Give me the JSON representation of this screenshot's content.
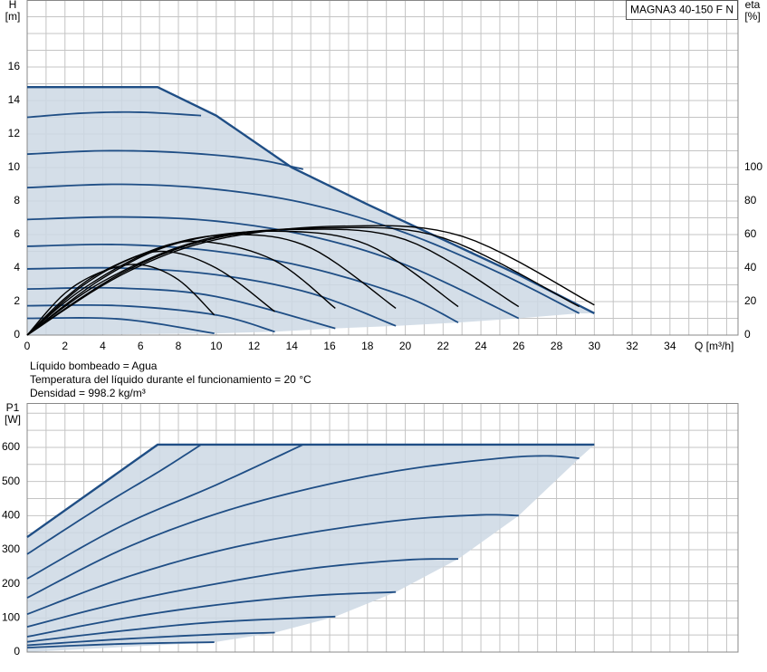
{
  "chart_data": [
    {
      "type": "line",
      "title": "MAGNA3 40-150 F N",
      "y_label": "H",
      "y_unit": "[m]",
      "y2_label": "eta",
      "y2_unit": "[%]",
      "x_label": "Q [m³/h]",
      "notes": [
        "Líquido bombeado = Agua",
        "Temperatura del líquido durante el funcionamiento = 20 °C",
        "Densidad = 998.2 kg/m³"
      ],
      "xlim": [
        0,
        37.6
      ],
      "xticks": [
        0,
        2,
        4,
        6,
        8,
        10,
        12,
        14,
        16,
        18,
        20,
        22,
        24,
        26,
        28,
        30,
        32,
        34
      ],
      "ylim": [
        0,
        20
      ],
      "yticks": [
        0,
        2,
        4,
        6,
        8,
        10,
        12,
        14,
        16
      ],
      "y2lim": [
        0,
        200
      ],
      "y2ticks": [
        0,
        20,
        40,
        60,
        80,
        100
      ],
      "grid": true,
      "fill_color": "#cdd8e4",
      "series": [
        {
          "color": "#1f4e85",
          "smooth": false,
          "x": [
            0,
            6.9,
            10,
            14,
            18,
            22,
            26,
            30
          ],
          "values": [
            14.8,
            14.8,
            13.1,
            10.0,
            7.8,
            5.7,
            3.6,
            1.3
          ]
        },
        {
          "color": "#1f4e85",
          "x": [
            0,
            3,
            6,
            9.2
          ],
          "values": [
            13.0,
            13.25,
            13.3,
            13.1
          ]
        },
        {
          "color": "#1f4e85",
          "x": [
            0,
            4,
            8,
            12,
            14.6
          ],
          "values": [
            10.8,
            11.0,
            10.9,
            10.5,
            9.9
          ]
        },
        {
          "color": "#1f4e85",
          "x": [
            0,
            5,
            10,
            15,
            20,
            25,
            29.2
          ],
          "values": [
            8.8,
            9.0,
            8.7,
            7.8,
            6.1,
            3.7,
            1.3
          ]
        },
        {
          "color": "#1f4e85",
          "x": [
            0,
            5,
            10,
            15,
            20,
            26
          ],
          "values": [
            6.9,
            7.05,
            6.8,
            5.9,
            4.2,
            1.0
          ]
        },
        {
          "color": "#1f4e85",
          "x": [
            0,
            5,
            10,
            15,
            20,
            22.8
          ],
          "values": [
            5.3,
            5.4,
            5.0,
            4.0,
            2.3,
            0.75
          ]
        },
        {
          "color": "#1f4e85",
          "x": [
            0,
            5,
            10,
            15,
            19.5
          ],
          "values": [
            3.95,
            4.0,
            3.6,
            2.5,
            0.55
          ]
        },
        {
          "color": "#1f4e85",
          "x": [
            0,
            5,
            10,
            16.3
          ],
          "values": [
            2.75,
            2.8,
            2.3,
            0.4
          ]
        },
        {
          "color": "#1f4e85",
          "x": [
            0,
            5,
            10,
            13.1
          ],
          "values": [
            1.75,
            1.75,
            1.2,
            0.2
          ]
        },
        {
          "color": "#1f4e85",
          "x": [
            0,
            5,
            9.9
          ],
          "values": [
            1.0,
            0.95,
            0.1
          ]
        },
        {
          "color": "#000000",
          "axis": "y2",
          "x": [
            0,
            2,
            4,
            6,
            8,
            9.9
          ],
          "values": [
            0,
            25,
            38,
            42,
            33,
            12
          ]
        },
        {
          "color": "#000000",
          "axis": "y2",
          "x": [
            0,
            2,
            4,
            7,
            10,
            13.1
          ],
          "values": [
            0,
            22,
            38,
            50,
            40,
            14
          ]
        },
        {
          "color": "#000000",
          "axis": "y2",
          "x": [
            0,
            3,
            6,
            9,
            13,
            16.3
          ],
          "values": [
            0,
            30,
            48,
            56,
            45,
            16
          ]
        },
        {
          "color": "#000000",
          "axis": "y2",
          "x": [
            0,
            3,
            7,
            11,
            15,
            19.5
          ],
          "values": [
            0,
            28,
            52,
            60,
            52,
            16
          ]
        },
        {
          "color": "#000000",
          "axis": "y2",
          "x": [
            0,
            4,
            8,
            13,
            18,
            22.8
          ],
          "values": [
            0,
            34,
            55,
            62,
            54,
            17
          ]
        },
        {
          "color": "#000000",
          "axis": "y2",
          "x": [
            0,
            4,
            9,
            14,
            20,
            26
          ],
          "values": [
            0,
            32,
            56,
            63,
            57,
            17
          ]
        },
        {
          "color": "#000000",
          "axis": "y2",
          "x": [
            0,
            5,
            10,
            16,
            22,
            29.2
          ],
          "values": [
            0,
            37,
            58,
            64,
            58,
            17
          ]
        },
        {
          "color": "#000000",
          "axis": "y2",
          "x": [
            0,
            5,
            10,
            16.5,
            23,
            30
          ],
          "values": [
            0,
            36,
            57,
            65,
            59,
            18
          ]
        }
      ]
    },
    {
      "type": "line",
      "y_label": "P1",
      "y_unit": "[W]",
      "xlim": [
        0,
        37.6
      ],
      "xticks": [
        0,
        2,
        4,
        6,
        8,
        10,
        12,
        14,
        16,
        18,
        20,
        22,
        24,
        26,
        28,
        30,
        32,
        34
      ],
      "show_xtick_labels": false,
      "ylim": [
        0,
        730
      ],
      "yticks": [
        0,
        100,
        200,
        300,
        400,
        500,
        600
      ],
      "grid": true,
      "fill_color": "#cdd8e4",
      "series": [
        {
          "color": "#1f4e85",
          "smooth": false,
          "x": [
            0,
            6.9,
            30
          ],
          "values": [
            337,
            608,
            608
          ]
        },
        {
          "color": "#1f4e85",
          "x": [
            0,
            4,
            7,
            9.2
          ],
          "values": [
            287,
            430,
            530,
            608
          ]
        },
        {
          "color": "#1f4e85",
          "x": [
            0,
            5,
            10,
            14.6
          ],
          "values": [
            215,
            370,
            490,
            608
          ]
        },
        {
          "color": "#1f4e85",
          "x": [
            0,
            5,
            10,
            15,
            20,
            25,
            27.5,
            29.2
          ],
          "values": [
            159,
            300,
            405,
            480,
            535,
            568,
            575,
            568
          ]
        },
        {
          "color": "#1f4e85",
          "x": [
            0,
            5,
            10,
            15,
            20,
            24,
            26
          ],
          "values": [
            111,
            215,
            295,
            350,
            388,
            402,
            400
          ]
        },
        {
          "color": "#1f4e85",
          "x": [
            0,
            5,
            10,
            15,
            20,
            22.8
          ],
          "values": [
            74,
            145,
            200,
            245,
            270,
            273
          ]
        },
        {
          "color": "#1f4e85",
          "x": [
            0,
            5,
            10,
            15,
            19.5
          ],
          "values": [
            45,
            98,
            138,
            165,
            176
          ]
        },
        {
          "color": "#1f4e85",
          "x": [
            0,
            5,
            10,
            16.3
          ],
          "values": [
            30,
            62,
            88,
            104
          ]
        },
        {
          "color": "#1f4e85",
          "x": [
            0,
            5,
            10,
            13.1
          ],
          "values": [
            20,
            38,
            52,
            57
          ]
        },
        {
          "color": "#1f4e85",
          "x": [
            0,
            5,
            9.9
          ],
          "values": [
            13,
            24,
            29
          ]
        }
      ]
    }
  ]
}
